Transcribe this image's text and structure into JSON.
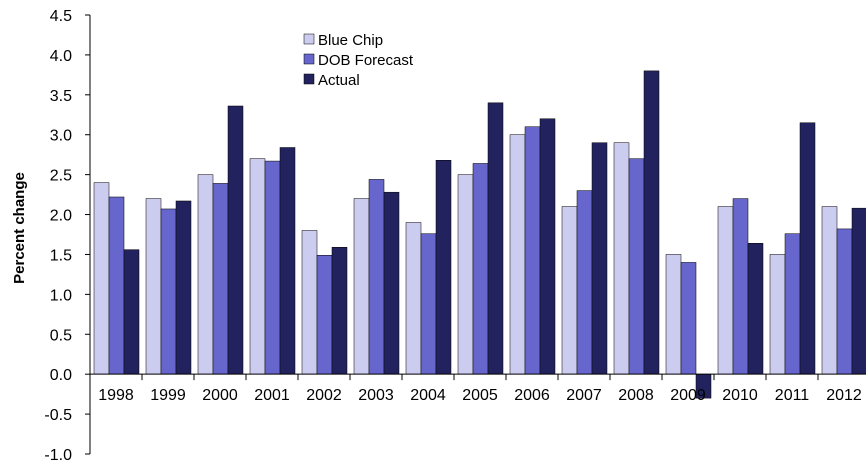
{
  "chart_data": {
    "type": "bar",
    "title": "",
    "xlabel": "",
    "ylabel": "Percent change",
    "ylim": [
      -1.0,
      4.5
    ],
    "yticks": [
      "4.5",
      "4.0",
      "3.5",
      "3.0",
      "2.5",
      "2.0",
      "1.5",
      "1.0",
      "0.5",
      "0.0",
      "-0.5",
      "-1.0"
    ],
    "categories": [
      "1998",
      "1999",
      "2000",
      "2001",
      "2002",
      "2003",
      "2004",
      "2005",
      "2006",
      "2007",
      "2008",
      "2009",
      "2010",
      "2011",
      "2012"
    ],
    "series": [
      {
        "name": "Blue Chip",
        "color": "#ccccf0",
        "values": [
          2.4,
          2.2,
          2.5,
          2.7,
          1.8,
          2.2,
          1.9,
          2.5,
          3.0,
          2.1,
          2.9,
          1.5,
          2.1,
          1.5,
          2.1
        ]
      },
      {
        "name": "DOB Forecast",
        "color": "#6666cc",
        "values": [
          2.22,
          2.07,
          2.39,
          2.67,
          1.49,
          2.44,
          1.76,
          2.64,
          3.1,
          2.3,
          2.7,
          1.4,
          2.2,
          1.76,
          1.82
        ]
      },
      {
        "name": "Actual",
        "color": "#22225e",
        "values": [
          1.56,
          2.17,
          3.36,
          2.84,
          1.59,
          2.28,
          2.68,
          3.4,
          3.2,
          2.9,
          3.8,
          -0.3,
          1.64,
          3.15,
          2.08
        ]
      }
    ],
    "grid": false,
    "legend": "top-center"
  }
}
